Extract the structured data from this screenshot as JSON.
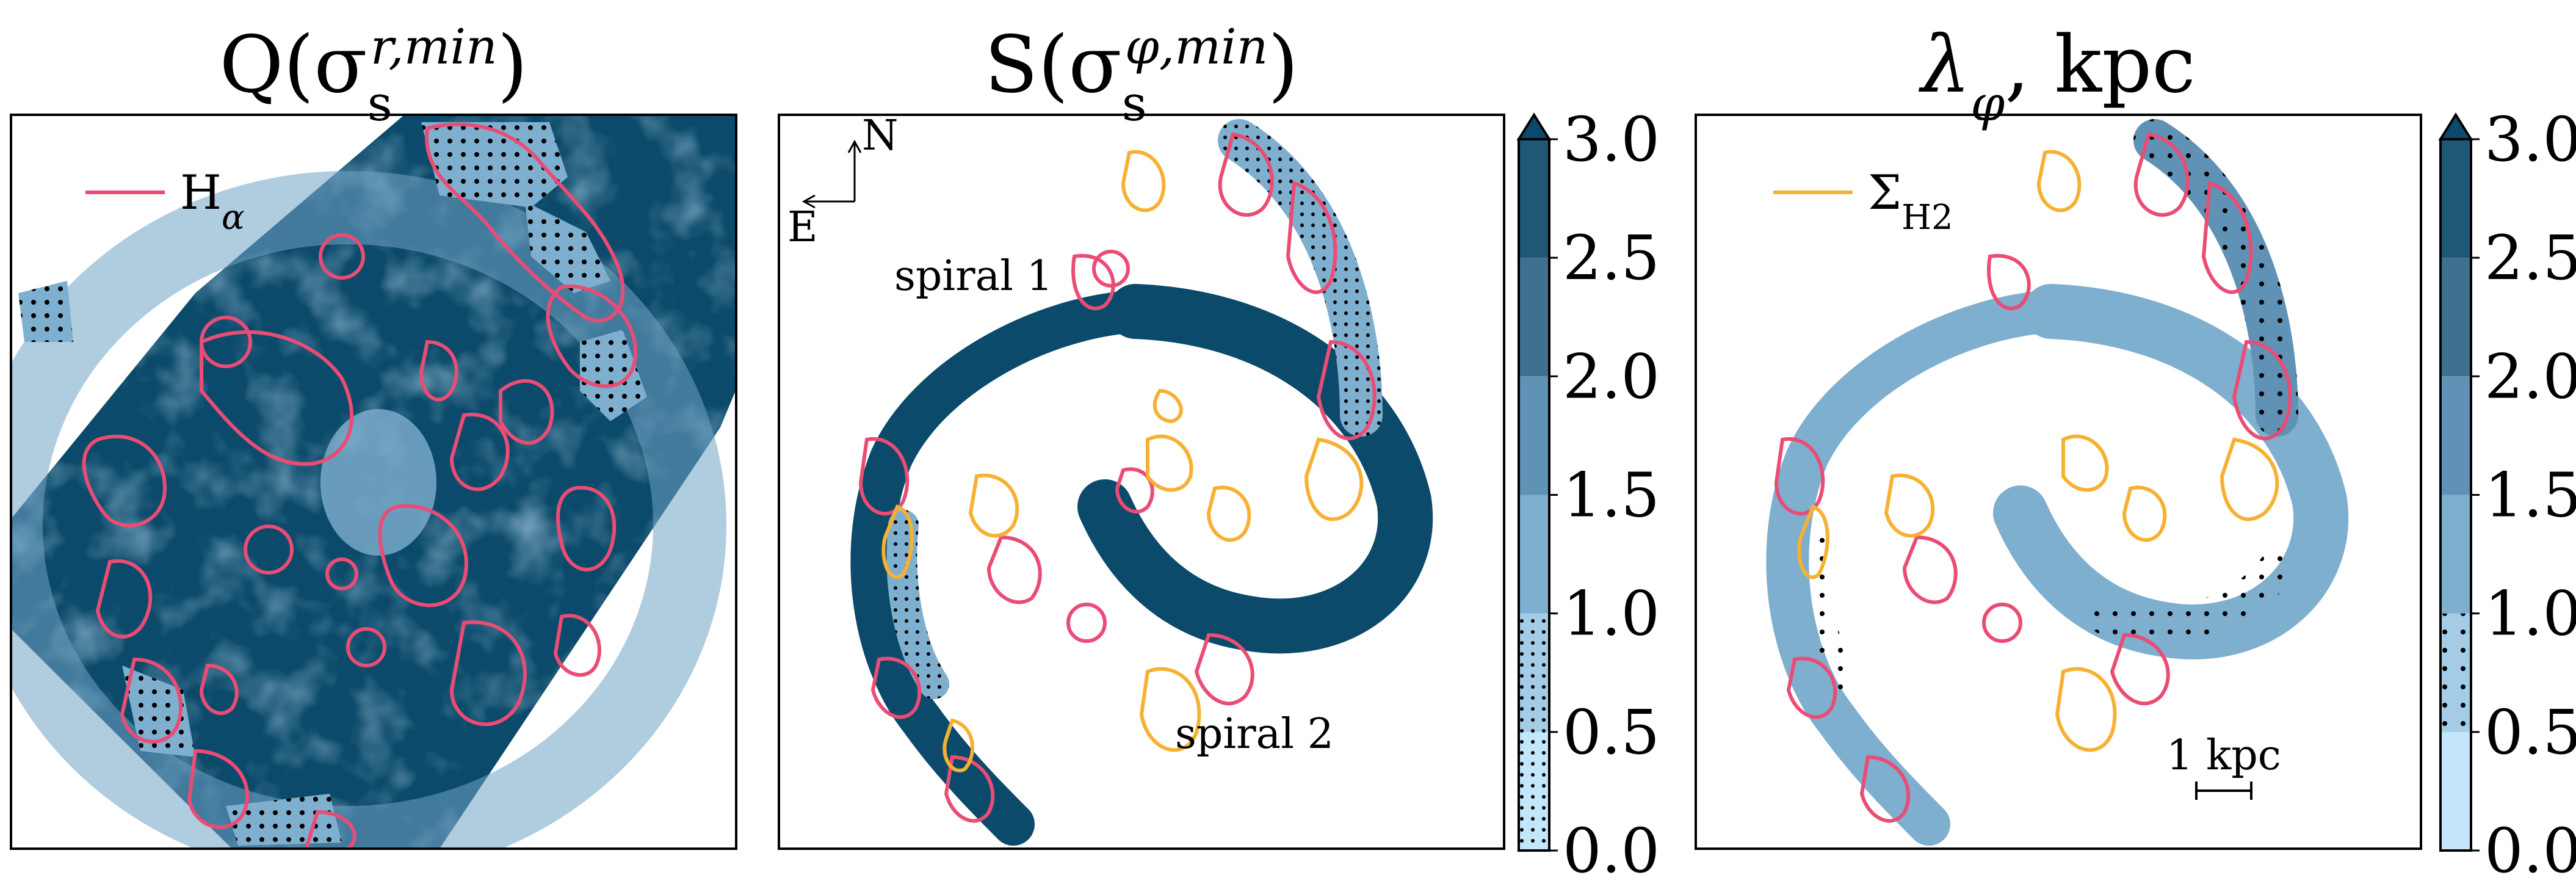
{
  "colors": {
    "cmap": [
      "#c4e6fb",
      "#a4cce6",
      "#7fafcf",
      "#5f92b5",
      "#3f7090",
      "#1f5777",
      "#0b4a6a"
    ],
    "map_dark": "#0b4a6a",
    "halpha_contour": "#ea4c75",
    "sigma_h2_contour": "#f6b132",
    "background": "#ffffff"
  },
  "chart_data": [
    {
      "type": "heatmap",
      "panel": "left",
      "title": "Q(σ_s^{r,min})",
      "title_parts": {
        "base": "Q(σ",
        "sub": "s",
        "sup": "r,min",
        "close": ")"
      },
      "legend": {
        "entries": [
          {
            "label": "H_α",
            "label_base": "H",
            "label_sub": "α",
            "color": "#ea4c75"
          }
        ],
        "placement": "top-left"
      },
      "overlay_contours": [
        "H_α"
      ],
      "hatch_below": 1.0,
      "grid": false
    },
    {
      "type": "heatmap",
      "panel": "middle",
      "title": "S(σ_s^{φ,min})",
      "title_parts": {
        "base": "S(σ",
        "sub": "s",
        "sup": "φ,min",
        "close": ")"
      },
      "compass": {
        "north": "N",
        "east": "E"
      },
      "annotations": [
        "spiral 1",
        "spiral 2"
      ],
      "overlay_contours": [
        "H_α",
        "Σ_H2"
      ],
      "hatch_below": 1.0,
      "colorbar": {
        "ticks": [
          "0.0",
          "0.5",
          "1.0",
          "1.5",
          "2.0",
          "2.5",
          "3.0"
        ],
        "range": [
          0.0,
          3.0
        ],
        "levels": [
          0.0,
          0.5,
          1.0,
          1.5,
          2.0,
          2.5,
          3.0
        ],
        "extend": "max",
        "hatched_levels_below": 1.0
      },
      "grid": false
    },
    {
      "type": "heatmap",
      "panel": "right",
      "title": "λ_φ, kpc",
      "title_parts": {
        "base": "λ",
        "sub": "φ",
        "suffix": ", kpc"
      },
      "legend": {
        "entries": [
          {
            "label": "Σ_H2",
            "label_base": "Σ",
            "label_sub": "H2",
            "color": "#f6b132"
          }
        ],
        "placement": "top-left"
      },
      "scale_bar": {
        "label": "1 kpc",
        "length_kpc": 1
      },
      "overlay_contours": [
        "H_α",
        "Σ_H2"
      ],
      "hatch_between": [
        0.5,
        1.0
      ],
      "colorbar": {
        "ticks": [
          "0.0",
          "0.5",
          "1.0",
          "1.5",
          "2.0",
          "2.5",
          "3.0"
        ],
        "range": [
          0.0,
          3.0
        ],
        "levels": [
          0.0,
          0.5,
          1.0,
          1.5,
          2.0,
          2.5,
          3.0
        ],
        "extend": "max",
        "hatched_levels_between": [
          0.5,
          1.0
        ]
      },
      "grid": false
    }
  ]
}
